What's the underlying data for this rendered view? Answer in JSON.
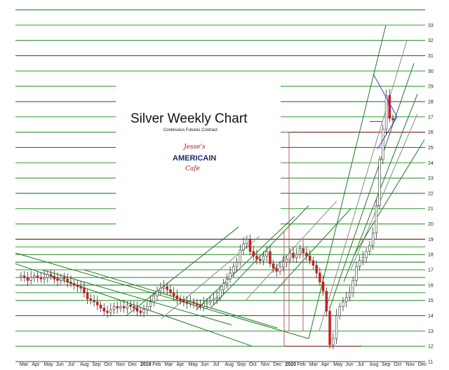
{
  "chart_data": {
    "type": "candlestick",
    "title": "Silver Weekly Chart",
    "subtitle": "Continuous Futures Contract",
    "logo": {
      "line1": "Jesse's",
      "line2": "AMERICAIN",
      "line3": "Cafe"
    },
    "ylim": [
      11,
      34
    ],
    "y_ticks": [
      11,
      12,
      13,
      14,
      15,
      16,
      17,
      18,
      19,
      20,
      21,
      22,
      23,
      24,
      25,
      26,
      27,
      28,
      29,
      30,
      31,
      32,
      33
    ],
    "x_labels": [
      {
        "label": "Mar",
        "bold": false
      },
      {
        "label": "Apr",
        "bold": false
      },
      {
        "label": "May",
        "bold": false
      },
      {
        "label": "Jun",
        "bold": false
      },
      {
        "label": "Jul",
        "bold": false
      },
      {
        "label": "Aug",
        "bold": false
      },
      {
        "label": "Sep",
        "bold": false
      },
      {
        "label": "Oct",
        "bold": false
      },
      {
        "label": "Nov",
        "bold": false
      },
      {
        "label": "Dec",
        "bold": false
      },
      {
        "label": "2019",
        "bold": true
      },
      {
        "label": "Feb",
        "bold": false
      },
      {
        "label": "Mar",
        "bold": false
      },
      {
        "label": "Apr",
        "bold": false
      },
      {
        "label": "May",
        "bold": false
      },
      {
        "label": "Jun",
        "bold": false
      },
      {
        "label": "Jul",
        "bold": false
      },
      {
        "label": "Aug",
        "bold": false
      },
      {
        "label": "Sep",
        "bold": false
      },
      {
        "label": "Oct",
        "bold": false
      },
      {
        "label": "Nov",
        "bold": false
      },
      {
        "label": "Dec",
        "bold": false
      },
      {
        "label": "2020",
        "bold": true
      },
      {
        "label": "Feb",
        "bold": false
      },
      {
        "label": "Mar",
        "bold": false
      },
      {
        "label": "Apr",
        "bold": false
      },
      {
        "label": "May",
        "bold": false
      },
      {
        "label": "Jun",
        "bold": false
      },
      {
        "label": "Jul",
        "bold": false
      },
      {
        "label": "Aug",
        "bold": false
      },
      {
        "label": "Sep",
        "bold": false
      },
      {
        "label": "Oct",
        "bold": false
      },
      {
        "label": "Nov",
        "bold": false
      },
      {
        "label": "Dec",
        "bold": false
      }
    ],
    "weekly_close": [
      16.6,
      16.5,
      16.3,
      16.5,
      16.6,
      16.5,
      16.4,
      16.5,
      16.7,
      16.6,
      16.4,
      16.3,
      16.5,
      16.4,
      16.2,
      16.1,
      16.0,
      15.9,
      15.8,
      15.5,
      15.1,
      15.0,
      14.9,
      14.7,
      14.5,
      14.3,
      14.2,
      14.4,
      14.6,
      14.5,
      14.6,
      14.5,
      14.7,
      14.6,
      14.5,
      14.3,
      14.2,
      14.4,
      14.6,
      14.9,
      15.3,
      15.6,
      15.8,
      15.9,
      15.7,
      15.5,
      15.3,
      15.1,
      15.0,
      14.9,
      14.8,
      14.9,
      14.8,
      14.7,
      14.6,
      14.8,
      14.9,
      15.0,
      15.1,
      15.2,
      15.7,
      16.1,
      16.4,
      16.8,
      17.2,
      17.5,
      18.3,
      18.7,
      19.0,
      18.2,
      17.9,
      17.7,
      17.6,
      17.9,
      18.2,
      17.4,
      17.1,
      16.9,
      17.2,
      17.5,
      17.7,
      18.1,
      17.8,
      18.0,
      18.4,
      18.1,
      17.9,
      17.6,
      17.3,
      16.8,
      16.2,
      15.6,
      14.3,
      12.1,
      12.5,
      14.0,
      14.6,
      14.9,
      15.2,
      15.5,
      16.3,
      17.2,
      17.6,
      17.8,
      18.2,
      18.6,
      19.4,
      21.2,
      24.2,
      26.2,
      28.4,
      26.9,
      26.8
    ],
    "price_line": 26.7,
    "horizontal_levels": [
      11,
      12,
      13,
      14,
      15,
      15.5,
      16,
      16.5,
      17,
      17.5,
      18,
      18.5,
      19,
      20,
      21,
      22,
      23,
      24,
      25,
      26,
      27,
      28,
      29,
      30,
      31,
      32,
      33,
      34
    ]
  }
}
